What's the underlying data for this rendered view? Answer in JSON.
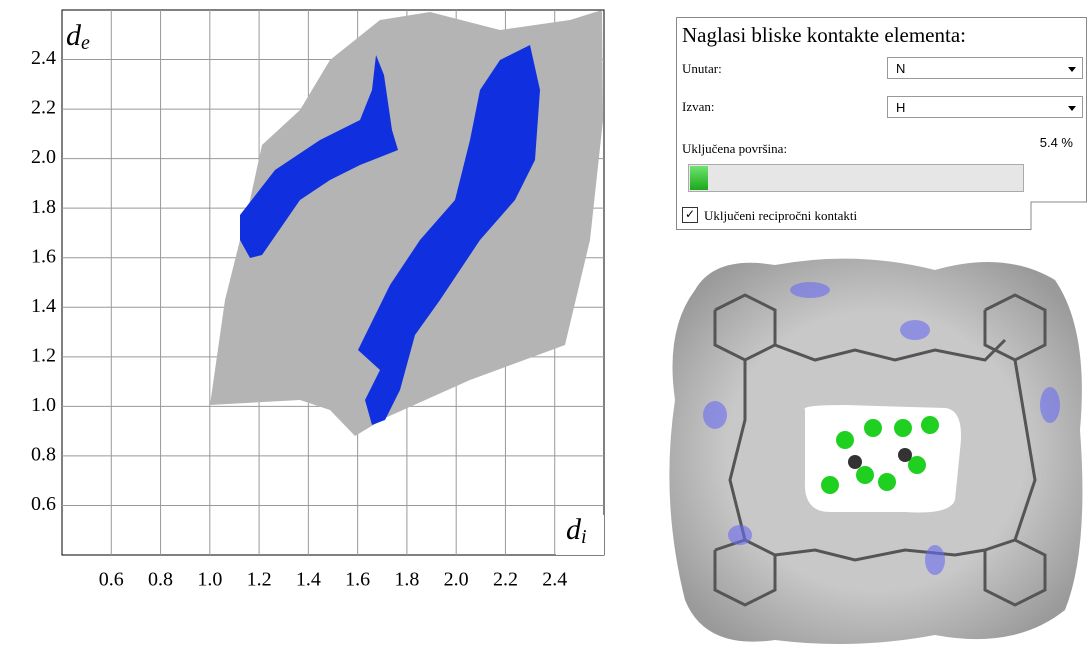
{
  "chart_data": {
    "type": "fingerprint",
    "ylabel_symbol": "d",
    "ylabel_subscript": "e",
    "xlabel_symbol": "d",
    "xlabel_subscript": "i",
    "xlim": [
      0.4,
      2.6
    ],
    "ylim": [
      0.4,
      2.6
    ],
    "xticks": [
      0.6,
      0.8,
      {
        "value": 1.0,
        "label": "1.0"
      },
      1.2,
      1.4,
      1.6,
      1.8,
      {
        "value": 2.0,
        "label": "2.0"
      },
      2.2,
      2.4
    ],
    "yticks": [
      0.6,
      0.8,
      {
        "value": 1.0,
        "label": "1.0"
      },
      1.2,
      1.4,
      1.6,
      1.8,
      {
        "value": 2.0,
        "label": "2.0"
      },
      2.2,
      2.4
    ],
    "grid": true,
    "background_color": "#b4b4b4",
    "highlight_color": "#1030e0"
  },
  "panel": {
    "title": "Naglasi bliske kontakte elementa:",
    "inside_label": "Unutar:",
    "inside_value": "N",
    "outside_label": "Izvan:",
    "outside_value": "H",
    "surface_label": "Uključena površina:",
    "surface_percent": {
      "value": 5.4,
      "label": "5.4 %"
    },
    "reciprocal_label": "Uključeni recipročni kontakti"
  }
}
